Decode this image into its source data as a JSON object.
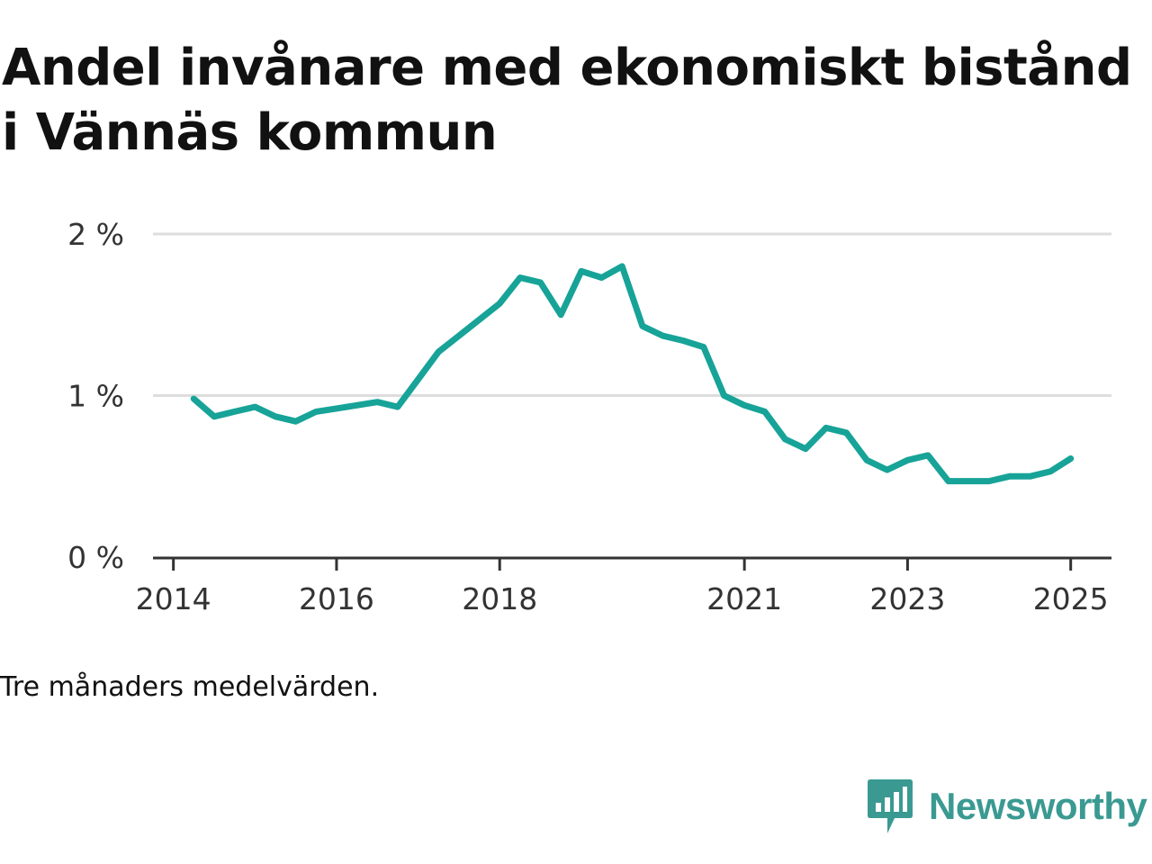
{
  "header": {
    "title": "Andel invånare med ekonomiskt bistånd i Vännäs kommun"
  },
  "note": "Tre månaders medelvärden.",
  "brand": {
    "name": "Newsworthy",
    "logo_icon": "bar-chart-speech-bubble-icon",
    "color": "#3a9a92"
  },
  "colors": {
    "line": "#17a398",
    "grid": "#dddddd",
    "axis": "#333333"
  },
  "chart_data": {
    "type": "line",
    "title": "Andel invånare med ekonomiskt bistånd i Vännäs kommun",
    "xlabel": "",
    "ylabel": "",
    "y_ticks": [
      {
        "value": 0,
        "label": "0 %"
      },
      {
        "value": 1,
        "label": "1 %"
      },
      {
        "value": 2,
        "label": "2 %"
      }
    ],
    "x_ticks": [
      {
        "value": "2014-01",
        "label": "2014"
      },
      {
        "value": "2016-01",
        "label": "2016"
      },
      {
        "value": "2018-01",
        "label": "2018"
      },
      {
        "value": "2021-01",
        "label": "2021"
      },
      {
        "value": "2023-01",
        "label": "2023"
      },
      {
        "value": "2025-01",
        "label": "2025"
      }
    ],
    "xlim": [
      "2013-10",
      "2025-07"
    ],
    "ylim": [
      0,
      2
    ],
    "grid": true,
    "series": [
      {
        "x": [
          "2014-04",
          "2014-07",
          "2014-10",
          "2015-01",
          "2015-04",
          "2015-07",
          "2015-10",
          "2016-01",
          "2016-04",
          "2016-07",
          "2016-10",
          "2017-01",
          "2017-04",
          "2017-07",
          "2017-10",
          "2018-01",
          "2018-04",
          "2018-07",
          "2018-10",
          "2019-01",
          "2019-04",
          "2019-07",
          "2019-10",
          "2020-01",
          "2020-04",
          "2020-07",
          "2020-10",
          "2021-01",
          "2021-04",
          "2021-07",
          "2021-10",
          "2022-01",
          "2022-04",
          "2022-07",
          "2022-10",
          "2023-01",
          "2023-04",
          "2023-07",
          "2023-10",
          "2024-01",
          "2024-04",
          "2024-07",
          "2024-10",
          "2025-01"
        ],
        "values": [
          0.98,
          0.87,
          0.9,
          0.93,
          0.87,
          0.84,
          0.9,
          0.92,
          0.94,
          0.96,
          0.93,
          1.1,
          1.27,
          1.37,
          1.47,
          1.57,
          1.73,
          1.7,
          1.5,
          1.77,
          1.73,
          1.8,
          1.43,
          1.37,
          1.34,
          1.3,
          1.0,
          0.94,
          0.9,
          0.73,
          0.67,
          0.8,
          0.77,
          0.6,
          0.54,
          0.6,
          0.63,
          0.47,
          0.47,
          0.47,
          0.5,
          0.5,
          0.53,
          0.61
        ]
      }
    ]
  }
}
